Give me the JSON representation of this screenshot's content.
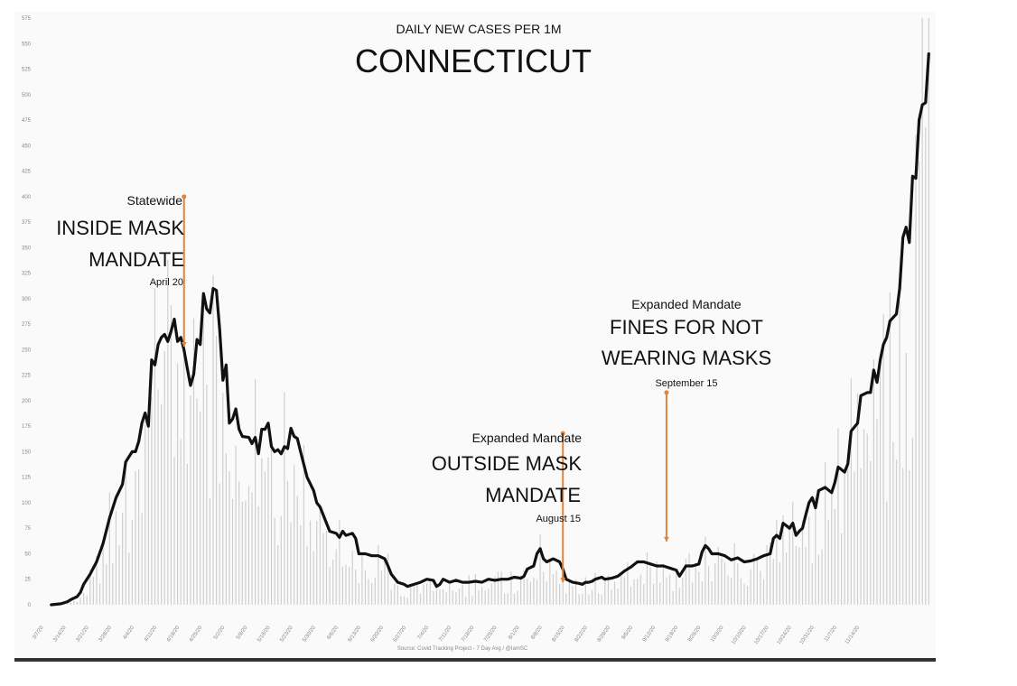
{
  "chart_data": {
    "type": "line",
    "title_small": "DAILY NEW CASES PER 1M",
    "title": "CONNECTICUT",
    "source": "Source: Covid Tracking Project - 7 Day Avg / @IamSC",
    "ylim": [
      0,
      575
    ],
    "yticks": [
      0,
      25,
      50,
      75,
      100,
      125,
      150,
      175,
      200,
      225,
      250,
      275,
      300,
      325,
      350,
      375,
      400,
      425,
      450,
      475,
      500,
      525,
      550,
      575
    ],
    "xlim_days": [
      0,
      270
    ],
    "xticks": [
      "3/7/20",
      "3/14/20",
      "3/21/20",
      "3/28/20",
      "4/4/20",
      "4/11/20",
      "4/18/20",
      "4/25/20",
      "5/2/20",
      "5/9/20",
      "5/16/20",
      "5/23/20",
      "5/30/20",
      "6/6/20",
      "6/13/20",
      "6/20/20",
      "6/27/20",
      "7/4/20",
      "7/11/20",
      "7/18/20",
      "7/25/20",
      "8/1/20",
      "8/8/20",
      "8/15/20",
      "8/22/20",
      "8/29/20",
      "9/5/20",
      "9/12/20",
      "9/19/20",
      "9/26/20",
      "10/3/20",
      "10/10/20",
      "10/17/20",
      "10/24/20",
      "10/31/20",
      "11/7/20",
      "11/14/20"
    ],
    "grid": false,
    "series": [
      {
        "points": [
          [
            3,
            0
          ],
          [
            6,
            1
          ],
          [
            8,
            3
          ],
          [
            9,
            5
          ],
          [
            11,
            8
          ],
          [
            12,
            12
          ],
          [
            13,
            20
          ],
          [
            15,
            30
          ],
          [
            17,
            42
          ],
          [
            19,
            60
          ],
          [
            21,
            85
          ],
          [
            23,
            105
          ],
          [
            25,
            118
          ],
          [
            26,
            140
          ],
          [
            28,
            150
          ],
          [
            29,
            150
          ],
          [
            30,
            160
          ],
          [
            31,
            178
          ],
          [
            32,
            188
          ],
          [
            33,
            175
          ],
          [
            34,
            240
          ],
          [
            35,
            235
          ],
          [
            36,
            255
          ],
          [
            37,
            262
          ],
          [
            38,
            265
          ],
          [
            39,
            258
          ],
          [
            40,
            268
          ],
          [
            41,
            280
          ],
          [
            42,
            258
          ],
          [
            43,
            262
          ],
          [
            44,
            250
          ],
          [
            45,
            232
          ],
          [
            46,
            215
          ],
          [
            47,
            226
          ],
          [
            48,
            260
          ],
          [
            49,
            255
          ],
          [
            50,
            305
          ],
          [
            51,
            290
          ],
          [
            52,
            286
          ],
          [
            53,
            310
          ],
          [
            54,
            308
          ],
          [
            55,
            270
          ],
          [
            56,
            220
          ],
          [
            57,
            235
          ],
          [
            58,
            178
          ],
          [
            59,
            182
          ],
          [
            60,
            192
          ],
          [
            61,
            172
          ],
          [
            62,
            165
          ],
          [
            64,
            164
          ],
          [
            65,
            158
          ],
          [
            66,
            164
          ],
          [
            67,
            148
          ],
          [
            68,
            172
          ],
          [
            69,
            172
          ],
          [
            70,
            178
          ],
          [
            71,
            155
          ],
          [
            72,
            150
          ],
          [
            73,
            152
          ],
          [
            74,
            148
          ],
          [
            75,
            155
          ],
          [
            76,
            153
          ],
          [
            77,
            173
          ],
          [
            78,
            165
          ],
          [
            79,
            163
          ],
          [
            80,
            150
          ],
          [
            82,
            125
          ],
          [
            84,
            112
          ],
          [
            85,
            100
          ],
          [
            86,
            96
          ],
          [
            88,
            80
          ],
          [
            89,
            72
          ],
          [
            91,
            70
          ],
          [
            92,
            66
          ],
          [
            93,
            72
          ],
          [
            94,
            68
          ],
          [
            96,
            70
          ],
          [
            97,
            65
          ],
          [
            98,
            50
          ],
          [
            100,
            50
          ],
          [
            102,
            48
          ],
          [
            104,
            48
          ],
          [
            106,
            45
          ],
          [
            107,
            38
          ],
          [
            108,
            30
          ],
          [
            110,
            22
          ],
          [
            112,
            20
          ],
          [
            113,
            18
          ],
          [
            115,
            20
          ],
          [
            117,
            22
          ],
          [
            119,
            25
          ],
          [
            121,
            24
          ],
          [
            122,
            18
          ],
          [
            123,
            20
          ],
          [
            124,
            25
          ],
          [
            126,
            22
          ],
          [
            128,
            24
          ],
          [
            130,
            22
          ],
          [
            132,
            22
          ],
          [
            134,
            23
          ],
          [
            136,
            22
          ],
          [
            138,
            25
          ],
          [
            140,
            24
          ],
          [
            142,
            25
          ],
          [
            144,
            25
          ],
          [
            146,
            27
          ],
          [
            148,
            26
          ],
          [
            149,
            28
          ],
          [
            150,
            35
          ],
          [
            152,
            38
          ],
          [
            153,
            50
          ],
          [
            154,
            55
          ],
          [
            155,
            45
          ],
          [
            156,
            42
          ],
          [
            158,
            45
          ],
          [
            160,
            42
          ],
          [
            161,
            35
          ],
          [
            162,
            25
          ],
          [
            164,
            22
          ],
          [
            166,
            21
          ],
          [
            167,
            20
          ],
          [
            168,
            22
          ],
          [
            169,
            22
          ],
          [
            170,
            23
          ],
          [
            171,
            25
          ],
          [
            173,
            27
          ],
          [
            174,
            25
          ],
          [
            176,
            26
          ],
          [
            178,
            28
          ],
          [
            180,
            33
          ],
          [
            182,
            37
          ],
          [
            184,
            42
          ],
          [
            186,
            42
          ],
          [
            188,
            40
          ],
          [
            190,
            38
          ],
          [
            192,
            38
          ],
          [
            194,
            36
          ],
          [
            196,
            34
          ],
          [
            197,
            28
          ],
          [
            199,
            38
          ],
          [
            201,
            38
          ],
          [
            203,
            40
          ],
          [
            204,
            52
          ],
          [
            205,
            58
          ],
          [
            206,
            55
          ],
          [
            207,
            50
          ],
          [
            209,
            50
          ],
          [
            211,
            48
          ],
          [
            213,
            44
          ],
          [
            215,
            46
          ],
          [
            217,
            42
          ],
          [
            219,
            43
          ],
          [
            221,
            45
          ],
          [
            223,
            48
          ],
          [
            225,
            50
          ],
          [
            226,
            65
          ],
          [
            227,
            68
          ],
          [
            228,
            65
          ],
          [
            229,
            80
          ],
          [
            231,
            75
          ],
          [
            232,
            80
          ],
          [
            233,
            68
          ],
          [
            234,
            72
          ],
          [
            235,
            75
          ],
          [
            236,
            88
          ],
          [
            237,
            100
          ],
          [
            238,
            105
          ],
          [
            239,
            95
          ],
          [
            240,
            112
          ],
          [
            242,
            115
          ],
          [
            244,
            110
          ],
          [
            245,
            120
          ],
          [
            246,
            135
          ],
          [
            248,
            130
          ],
          [
            249,
            138
          ],
          [
            250,
            170
          ],
          [
            252,
            178
          ],
          [
            253,
            205
          ],
          [
            255,
            208
          ],
          [
            256,
            208
          ],
          [
            257,
            230
          ],
          [
            258,
            218
          ],
          [
            259,
            240
          ],
          [
            260,
            255
          ],
          [
            261,
            262
          ],
          [
            262,
            278
          ],
          [
            264,
            285
          ],
          [
            265,
            310
          ],
          [
            266,
            360
          ],
          [
            267,
            370
          ],
          [
            268,
            355
          ],
          [
            269,
            420
          ],
          [
            270,
            418
          ],
          [
            271,
            475
          ],
          [
            272,
            490
          ],
          [
            273,
            492
          ],
          [
            274,
            540
          ]
        ]
      }
    ],
    "annotations": [
      {
        "small": "Statewide",
        "big1": "INSIDE MASK",
        "big2": "MANDATE",
        "date": "April 20",
        "day": 44,
        "from": 400,
        "to": 253
      },
      {
        "small": "Expanded Mandate",
        "big1": "OUTSIDE MASK",
        "big2": "MANDATE",
        "date": "August 15",
        "day": 161,
        "from": 168,
        "to": 22
      },
      {
        "small": "Expanded Mandate",
        "big1": "FINES FOR NOT",
        "big2": "WEARING MASKS",
        "date": "September 15",
        "day": 193,
        "from": 208,
        "to": 62
      }
    ],
    "colors": {
      "line": "#111111",
      "annotation": "#e0843a",
      "bars": "#cfcfcf"
    }
  }
}
